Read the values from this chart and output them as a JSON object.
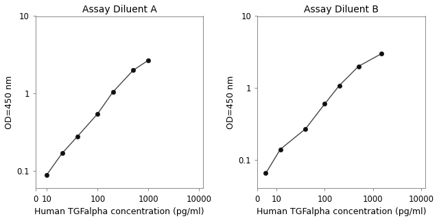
{
  "panel_A": {
    "title": "Assay Diluent A",
    "x": [
      10,
      20,
      40,
      100,
      200,
      500,
      1000
    ],
    "y": [
      0.09,
      0.17,
      0.28,
      0.55,
      1.05,
      2.0,
      2.7
    ],
    "xlabel": "Human TGFalpha concentration (pg/ml)",
    "ylabel": "OD=450 nm",
    "xlim": [
      6,
      12000
    ],
    "ylim": [
      0.06,
      10
    ],
    "x_tick_pos": [
      10,
      100,
      1000,
      10000
    ],
    "x_tick_labels": [
      "10",
      "100",
      "1000",
      "10000"
    ],
    "x_extra_tick": 6,
    "x_extra_label": "0",
    "yticks": [
      0.1,
      1,
      10
    ],
    "ytick_labels": [
      "0.1",
      "1",
      "10"
    ]
  },
  "panel_B": {
    "title": "Assay Diluent B",
    "x": [
      6,
      12,
      40,
      100,
      200,
      500,
      1500
    ],
    "y": [
      0.065,
      0.14,
      0.27,
      0.6,
      1.08,
      2.0,
      3.0
    ],
    "xlabel": "Human TGFalpha concentration (pg/ml)",
    "ylabel": "OD=450 nm",
    "xlim": [
      4,
      12000
    ],
    "ylim": [
      0.04,
      10
    ],
    "x_tick_pos": [
      10,
      100,
      1000,
      10000
    ],
    "x_tick_labels": [
      "10",
      "100",
      "1000",
      "10000"
    ],
    "x_extra_tick": 4,
    "x_extra_label": "0",
    "yticks": [
      0.1,
      1,
      10
    ],
    "ytick_labels": [
      "0.1",
      "1",
      "10"
    ]
  },
  "line_color": "#444444",
  "marker_color": "#111111",
  "bg_color": "#ffffff",
  "title_fontsize": 10,
  "label_fontsize": 9,
  "tick_fontsize": 8.5
}
